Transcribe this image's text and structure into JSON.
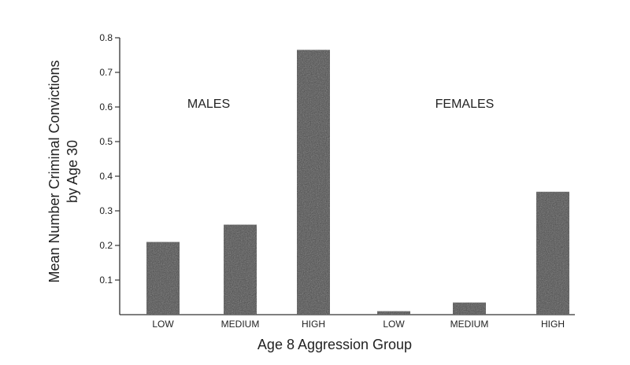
{
  "chart_data": {
    "type": "bar",
    "xlabel": "Age 8 Aggression Group",
    "ylabel_lines": [
      "Mean Number Criminal Convictions",
      "by Age 30"
    ],
    "ylim": [
      0,
      0.8
    ],
    "yticks": [
      "0.1",
      "0.2",
      "0.3",
      "0.4",
      "0.5",
      "0.6",
      "0.7",
      "0.8"
    ],
    "groups": [
      {
        "label": "MALES",
        "categories": [
          "LOW",
          "MEDIUM",
          "HIGH"
        ],
        "values": [
          0.21,
          0.26,
          0.765
        ]
      },
      {
        "label": "FEMALES",
        "categories": [
          "LOW",
          "MEDIUM",
          "HIGH"
        ],
        "values": [
          0.01,
          0.035,
          0.355
        ]
      }
    ],
    "bar_color": "#4a4a4a",
    "grid": false
  }
}
